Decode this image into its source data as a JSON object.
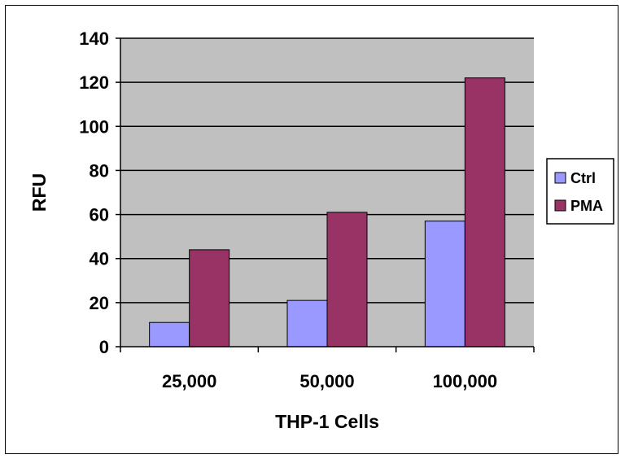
{
  "chart_data": {
    "type": "bar",
    "title": "",
    "xlabel": "THP-1 Cells",
    "ylabel": "RFU",
    "categories": [
      "25,000",
      "50,000",
      "100,000"
    ],
    "series": [
      {
        "name": "Ctrl",
        "color": "#9999ff",
        "values": [
          11,
          21,
          57
        ]
      },
      {
        "name": "PMA",
        "color": "#993366",
        "values": [
          44,
          61,
          122
        ]
      }
    ],
    "ylim": [
      0,
      140
    ],
    "yticks": [
      0,
      20,
      40,
      60,
      80,
      100,
      120,
      140
    ],
    "grid": true,
    "plot_background": "#c0c0c0",
    "legend_position": "right"
  }
}
